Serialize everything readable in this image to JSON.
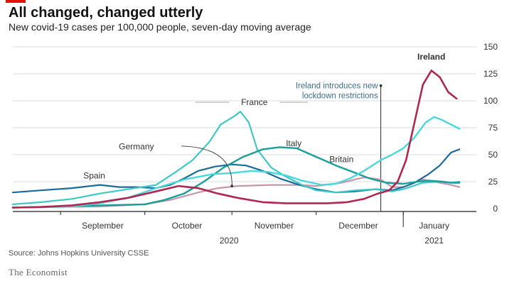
{
  "header": {
    "title": "All changed, changed utterly",
    "subtitle": "New covid-19 cases per 100,000 people, seven-day moving average"
  },
  "footer": {
    "source": "Source: Johns Hopkins University CSSE",
    "brand": "The Economist"
  },
  "chart_data": {
    "type": "line",
    "title": "All changed, changed utterly",
    "subtitle": "New covid-19 cases per 100,000 people, seven-day moving average",
    "ylim": [
      0,
      150
    ],
    "y_ticks": [
      0,
      25,
      50,
      75,
      100,
      125,
      150
    ],
    "x_range": [
      "2020-08-15",
      "2021-01-25"
    ],
    "x_tick_dates": [
      "2020-09-01",
      "2020-10-01",
      "2020-11-01",
      "2020-12-01",
      "2021-01-01"
    ],
    "x_month_labels": [
      {
        "label": "September",
        "date": "2020-09-16"
      },
      {
        "label": "October",
        "date": "2020-10-16"
      },
      {
        "label": "November",
        "date": "2020-11-16"
      },
      {
        "label": "December",
        "date": "2020-12-16"
      },
      {
        "label": "January",
        "date": "2021-01-12"
      }
    ],
    "x_year_labels": [
      {
        "label": "2020",
        "date": "2020-10-31"
      },
      {
        "label": "2021",
        "date": "2021-01-12"
      }
    ],
    "grid": true,
    "annotation": {
      "lines": [
        "Ireland introduces new",
        "lockdown restrictions"
      ],
      "date": "2020-12-24",
      "y": 114
    },
    "series": [
      {
        "name": "Germany",
        "color": "#c597aa",
        "width": 2.2,
        "label": {
          "text": "Germany",
          "date": "2020-09-28",
          "y": 55
        },
        "leader": {
          "from": [
            "2020-10-14",
            58
          ],
          "to": [
            "2020-11-01",
            21
          ]
        },
        "points": [
          [
            "2020-08-15",
            1
          ],
          [
            "2020-09-01",
            1.5
          ],
          [
            "2020-09-15",
            2
          ],
          [
            "2020-10-01",
            4
          ],
          [
            "2020-10-10",
            8
          ],
          [
            "2020-10-20",
            15
          ],
          [
            "2020-10-27",
            19
          ],
          [
            "2020-11-03",
            21
          ],
          [
            "2020-11-15",
            22
          ],
          [
            "2020-11-25",
            22
          ],
          [
            "2020-12-01",
            21
          ],
          [
            "2020-12-10",
            24
          ],
          [
            "2020-12-18",
            29
          ],
          [
            "2020-12-24",
            27
          ],
          [
            "2020-12-28",
            20
          ],
          [
            "2021-01-01",
            20
          ],
          [
            "2021-01-08",
            27
          ],
          [
            "2021-01-12",
            25
          ],
          [
            "2021-01-18",
            22
          ],
          [
            "2021-01-21",
            20
          ]
        ]
      },
      {
        "name": "Spain",
        "color": "#1a6b9a",
        "width": 2.2,
        "label": {
          "text": "Spain",
          "date": "2020-09-13",
          "y": 28
        },
        "points": [
          [
            "2020-08-15",
            15
          ],
          [
            "2020-08-25",
            17
          ],
          [
            "2020-09-05",
            19
          ],
          [
            "2020-09-15",
            22
          ],
          [
            "2020-09-22",
            20
          ],
          [
            "2020-09-28",
            20
          ],
          [
            "2020-10-05",
            19
          ],
          [
            "2020-10-10",
            22
          ],
          [
            "2020-10-15",
            28
          ],
          [
            "2020-10-20",
            35
          ],
          [
            "2020-10-26",
            39
          ],
          [
            "2020-11-01",
            41
          ],
          [
            "2020-11-06",
            40
          ],
          [
            "2020-11-12",
            35
          ],
          [
            "2020-11-18",
            28
          ],
          [
            "2020-11-25",
            22
          ],
          [
            "2020-12-01",
            18
          ],
          [
            "2020-12-08",
            15
          ],
          [
            "2020-12-15",
            16
          ],
          [
            "2020-12-22",
            18
          ],
          [
            "2020-12-28",
            17
          ],
          [
            "2021-01-01",
            20
          ],
          [
            "2021-01-05",
            24
          ],
          [
            "2021-01-10",
            32
          ],
          [
            "2021-01-14",
            40
          ],
          [
            "2021-01-18",
            52
          ],
          [
            "2021-01-21",
            55
          ]
        ]
      },
      {
        "name": "France",
        "color": "#3fc8c8",
        "width": 2.2,
        "label": {
          "text": "France",
          "date": "2020-11-09",
          "y": 96
        },
        "points": [
          [
            "2020-08-15",
            4
          ],
          [
            "2020-08-25",
            6
          ],
          [
            "2020-09-05",
            9
          ],
          [
            "2020-09-15",
            14
          ],
          [
            "2020-09-25",
            18
          ],
          [
            "2020-10-05",
            22
          ],
          [
            "2020-10-12",
            34
          ],
          [
            "2020-10-18",
            45
          ],
          [
            "2020-10-24",
            62
          ],
          [
            "2020-10-28",
            78
          ],
          [
            "2020-11-02",
            86
          ],
          [
            "2020-11-04",
            90
          ],
          [
            "2020-11-07",
            80
          ],
          [
            "2020-11-10",
            55
          ],
          [
            "2020-11-15",
            38
          ],
          [
            "2020-11-20",
            30
          ],
          [
            "2020-11-26",
            22
          ],
          [
            "2020-12-01",
            17
          ],
          [
            "2020-12-08",
            15
          ],
          [
            "2020-12-15",
            17
          ],
          [
            "2020-12-22",
            18
          ],
          [
            "2020-12-28",
            16
          ],
          [
            "2021-01-01",
            18
          ],
          [
            "2021-01-08",
            24
          ],
          [
            "2021-01-14",
            25
          ],
          [
            "2021-01-18",
            24
          ],
          [
            "2021-01-21",
            25
          ]
        ]
      },
      {
        "name": "Italy",
        "color": "#1a9e9a",
        "width": 2.4,
        "label": {
          "text": "Italy",
          "date": "2020-11-23",
          "y": 58
        },
        "points": [
          [
            "2020-08-15",
            1
          ],
          [
            "2020-09-01",
            2
          ],
          [
            "2020-09-15",
            3
          ],
          [
            "2020-10-01",
            4
          ],
          [
            "2020-10-08",
            8
          ],
          [
            "2020-10-15",
            14
          ],
          [
            "2020-10-22",
            25
          ],
          [
            "2020-10-29",
            38
          ],
          [
            "2020-11-05",
            48
          ],
          [
            "2020-11-12",
            55
          ],
          [
            "2020-11-18",
            57
          ],
          [
            "2020-11-24",
            56
          ],
          [
            "2020-12-01",
            48
          ],
          [
            "2020-12-08",
            40
          ],
          [
            "2020-12-15",
            33
          ],
          [
            "2020-12-20",
            28
          ],
          [
            "2020-12-26",
            24
          ],
          [
            "2021-01-01",
            23
          ],
          [
            "2021-01-06",
            25
          ],
          [
            "2021-01-10",
            26
          ],
          [
            "2021-01-15",
            25
          ],
          [
            "2021-01-18",
            24
          ],
          [
            "2021-01-21",
            24
          ]
        ]
      },
      {
        "name": "Britain",
        "color": "#4ad8dc",
        "width": 2.4,
        "label": {
          "text": "Britain",
          "date": "2020-12-10",
          "y": 43
        },
        "points": [
          [
            "2020-08-15",
            1
          ],
          [
            "2020-08-25",
            1.5
          ],
          [
            "2020-09-05",
            2
          ],
          [
            "2020-09-15",
            5
          ],
          [
            "2020-09-25",
            10
          ],
          [
            "2020-10-05",
            19
          ],
          [
            "2020-10-15",
            27
          ],
          [
            "2020-10-25",
            32
          ],
          [
            "2020-11-01",
            33
          ],
          [
            "2020-11-08",
            35
          ],
          [
            "2020-11-14",
            34
          ],
          [
            "2020-11-20",
            31
          ],
          [
            "2020-11-26",
            26
          ],
          [
            "2020-12-03",
            22
          ],
          [
            "2020-12-08",
            23
          ],
          [
            "2020-12-13",
            28
          ],
          [
            "2020-12-18",
            35
          ],
          [
            "2020-12-24",
            45
          ],
          [
            "2020-12-28",
            50
          ],
          [
            "2021-01-01",
            56
          ],
          [
            "2021-01-05",
            66
          ],
          [
            "2021-01-09",
            80
          ],
          [
            "2021-01-12",
            85
          ],
          [
            "2021-01-15",
            82
          ],
          [
            "2021-01-18",
            78
          ],
          [
            "2021-01-21",
            74
          ]
        ]
      },
      {
        "name": "Ireland",
        "color": "#b0274f",
        "width": 2.6,
        "label": {
          "text": "Ireland",
          "date": "2021-01-11",
          "y": 138
        },
        "points": [
          [
            "2020-08-15",
            1
          ],
          [
            "2020-08-25",
            1.5
          ],
          [
            "2020-09-05",
            3
          ],
          [
            "2020-09-15",
            6
          ],
          [
            "2020-09-25",
            10
          ],
          [
            "2020-10-05",
            16
          ],
          [
            "2020-10-13",
            21
          ],
          [
            "2020-10-20",
            19
          ],
          [
            "2020-10-27",
            14
          ],
          [
            "2020-11-03",
            10
          ],
          [
            "2020-11-12",
            6
          ],
          [
            "2020-11-20",
            5
          ],
          [
            "2020-11-28",
            5
          ],
          [
            "2020-12-05",
            5
          ],
          [
            "2020-12-12",
            6
          ],
          [
            "2020-12-18",
            9
          ],
          [
            "2020-12-23",
            14
          ],
          [
            "2020-12-27",
            17
          ],
          [
            "2020-12-30",
            25
          ],
          [
            "2021-01-02",
            45
          ],
          [
            "2021-01-05",
            80
          ],
          [
            "2021-01-08",
            115
          ],
          [
            "2021-01-11",
            128
          ],
          [
            "2021-01-14",
            122
          ],
          [
            "2021-01-17",
            108
          ],
          [
            "2021-01-20",
            102
          ]
        ]
      }
    ]
  }
}
